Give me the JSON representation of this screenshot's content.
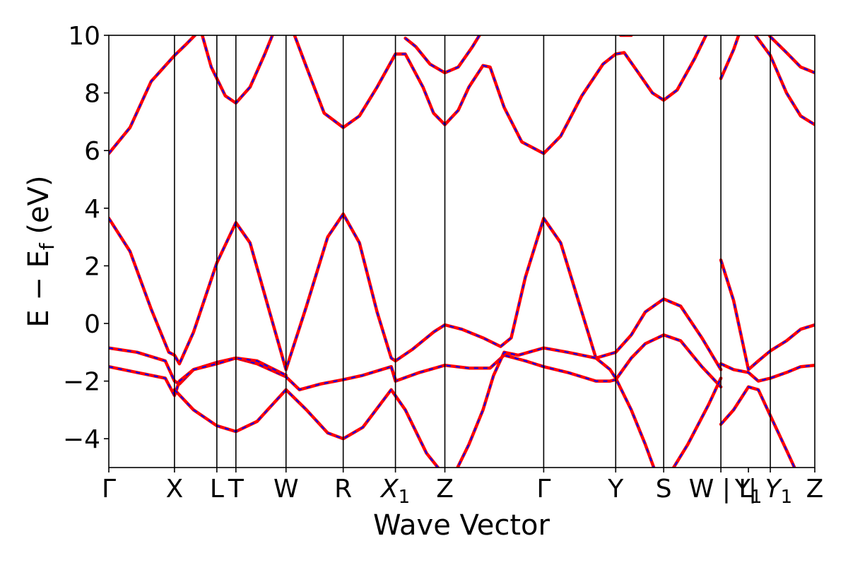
{
  "chart_data": {
    "type": "line",
    "xlabel": "Wave Vector",
    "ylabel": "E − E_f (eV)",
    "ylabel_main": "E − E",
    "ylabel_sub": "f",
    "ylabel_tail": " (eV)",
    "ylim": [
      -5,
      10
    ],
    "yticks": [
      -4,
      -2,
      0,
      2,
      4,
      6,
      8,
      10
    ],
    "ytick_labels": [
      "−4",
      "−2",
      "0",
      "2",
      "4",
      "6",
      "8",
      "10"
    ],
    "grid": false,
    "kpoints": [
      {
        "label": "Γ",
        "x": 0.0
      },
      {
        "label": "X",
        "x": 0.93
      },
      {
        "label": "L",
        "x": 1.53
      },
      {
        "label": "T",
        "x": 1.8
      },
      {
        "label": "W",
        "x": 2.51
      },
      {
        "label": "R",
        "x": 3.32
      },
      {
        "label": "X",
        "sub": "1",
        "italic": true,
        "x": 4.06
      },
      {
        "label": "Z",
        "x": 4.76
      },
      {
        "label": "Γ",
        "x": 6.16
      },
      {
        "label": "Y",
        "x": 7.18
      },
      {
        "label": "S",
        "x": 7.86
      },
      {
        "label": "W | L",
        "x": 8.67
      },
      {
        "label": "Y",
        "sub": "1",
        "x": 9.06
      },
      {
        "label": "| Y",
        "sub": "1",
        "italic": true,
        "x": 9.37
      },
      {
        "label": "Z",
        "x": 10.0
      }
    ],
    "vlines": [
      0.93,
      1.53,
      1.8,
      2.51,
      3.32,
      4.06,
      4.76,
      6.16,
      7.18,
      7.86,
      8.67,
      9.37
    ],
    "xlim": [
      0,
      10.0
    ],
    "series": [
      {
        "style": "solid",
        "color": "#ff0000"
      },
      {
        "style": "dashed",
        "color": "#0000ff"
      }
    ],
    "bands": [
      [
        [
          0,
          5.9
        ],
        [
          0.3,
          6.8
        ],
        [
          0.6,
          8.4
        ],
        [
          0.93,
          9.3
        ],
        [
          1.1,
          9.7
        ],
        [
          1.3,
          10.2
        ]
      ],
      [
        [
          1.3,
          10.2
        ],
        [
          1.45,
          8.9
        ],
        [
          1.65,
          7.9
        ],
        [
          1.8,
          7.65
        ],
        [
          2.0,
          8.2
        ],
        [
          2.2,
          9.3
        ],
        [
          2.35,
          10.2
        ]
      ],
      [
        [
          2.6,
          10.2
        ],
        [
          2.8,
          8.9
        ],
        [
          3.05,
          7.3
        ],
        [
          3.32,
          6.8
        ],
        [
          3.55,
          7.2
        ],
        [
          3.8,
          8.2
        ],
        [
          4.06,
          9.35
        ],
        [
          4.2,
          9.35
        ],
        [
          4.45,
          8.2
        ],
        [
          4.6,
          7.3
        ],
        [
          4.76,
          6.9
        ],
        [
          4.95,
          7.4
        ],
        [
          5.1,
          8.2
        ],
        [
          5.3,
          8.95
        ],
        [
          5.4,
          8.9
        ],
        [
          5.6,
          7.5
        ],
        [
          5.85,
          6.3
        ],
        [
          6.16,
          5.9
        ],
        [
          6.4,
          6.5
        ],
        [
          6.7,
          7.9
        ],
        [
          7.0,
          9.0
        ],
        [
          7.18,
          9.35
        ],
        [
          7.3,
          9.4
        ],
        [
          7.5,
          8.7
        ],
        [
          7.7,
          8.0
        ],
        [
          7.86,
          7.75
        ],
        [
          8.05,
          8.1
        ],
        [
          8.3,
          9.2
        ],
        [
          8.5,
          10.2
        ]
      ],
      [
        [
          4.2,
          9.9
        ],
        [
          4.35,
          9.6
        ],
        [
          4.55,
          9.0
        ],
        [
          4.76,
          8.7
        ],
        [
          4.95,
          8.9
        ],
        [
          5.15,
          9.6
        ],
        [
          5.3,
          10.2
        ]
      ],
      [
        [
          8.67,
          8.5
        ],
        [
          8.85,
          9.5
        ],
        [
          8.95,
          10.2
        ]
      ],
      [
        [
          9.3,
          10.2
        ],
        [
          9.37,
          9.95
        ],
        [
          9.6,
          9.4
        ],
        [
          9.8,
          8.9
        ],
        [
          10.0,
          8.7
        ]
      ],
      [
        [
          9.1,
          10.2
        ],
        [
          9.37,
          9.3
        ],
        [
          9.6,
          8.0
        ],
        [
          9.8,
          7.2
        ],
        [
          10.0,
          6.9
        ]
      ],
      [
        [
          7.25,
          10.0
        ],
        [
          7.4,
          10.0
        ]
      ],
      [
        [
          0,
          3.65
        ],
        [
          0.3,
          2.5
        ],
        [
          0.6,
          0.5
        ],
        [
          0.85,
          -1.0
        ],
        [
          0.93,
          -1.1
        ],
        [
          1.0,
          -1.4
        ],
        [
          1.2,
          -0.3
        ],
        [
          1.53,
          2.1
        ],
        [
          1.8,
          3.5
        ],
        [
          2.0,
          2.8
        ],
        [
          2.3,
          0.2
        ],
        [
          2.51,
          -1.6
        ],
        [
          2.8,
          0.6
        ],
        [
          3.1,
          3.0
        ],
        [
          3.32,
          3.8
        ],
        [
          3.55,
          2.8
        ],
        [
          3.8,
          0.4
        ],
        [
          4.0,
          -1.2
        ],
        [
          4.06,
          -1.3
        ],
        [
          4.3,
          -0.9
        ],
        [
          4.6,
          -0.3
        ],
        [
          4.76,
          -0.05
        ],
        [
          5.0,
          -0.2
        ],
        [
          5.3,
          -0.5
        ],
        [
          5.55,
          -0.8
        ],
        [
          5.7,
          -0.5
        ],
        [
          5.9,
          1.6
        ],
        [
          6.16,
          3.65
        ],
        [
          6.4,
          2.8
        ],
        [
          6.7,
          0.4
        ],
        [
          6.9,
          -1.2
        ],
        [
          7.18,
          -1.0
        ],
        [
          7.4,
          -0.4
        ],
        [
          7.6,
          0.4
        ],
        [
          7.86,
          0.85
        ],
        [
          8.1,
          0.6
        ],
        [
          8.4,
          -0.5
        ],
        [
          8.67,
          -1.6
        ]
      ],
      [
        [
          0,
          -0.85
        ],
        [
          0.4,
          -1.0
        ],
        [
          0.8,
          -1.3
        ],
        [
          0.93,
          -2.0
        ],
        [
          1.0,
          -2.1
        ],
        [
          1.2,
          -1.6
        ],
        [
          1.53,
          -1.35
        ],
        [
          1.8,
          -1.2
        ],
        [
          2.1,
          -1.4
        ],
        [
          2.51,
          -1.85
        ],
        [
          2.7,
          -2.3
        ],
        [
          3.0,
          -2.1
        ],
        [
          3.32,
          -1.95
        ],
        [
          3.6,
          -1.8
        ],
        [
          4.0,
          -1.5
        ],
        [
          4.06,
          -2.0
        ],
        [
          4.4,
          -1.7
        ],
        [
          4.76,
          -1.45
        ],
        [
          5.1,
          -1.55
        ],
        [
          5.4,
          -1.55
        ],
        [
          5.6,
          -1.1
        ],
        [
          5.9,
          -1.3
        ],
        [
          6.16,
          -1.5
        ],
        [
          6.5,
          -1.7
        ],
        [
          6.9,
          -2.0
        ],
        [
          7.1,
          -2.0
        ],
        [
          7.18,
          -1.95
        ],
        [
          7.4,
          -1.2
        ],
        [
          7.6,
          -0.7
        ],
        [
          7.86,
          -0.4
        ],
        [
          8.1,
          -0.6
        ],
        [
          8.4,
          -1.5
        ],
        [
          8.67,
          -2.2
        ]
      ],
      [
        [
          0,
          -1.5
        ],
        [
          0.4,
          -1.7
        ],
        [
          0.8,
          -1.9
        ],
        [
          0.93,
          -2.5
        ],
        [
          1.0,
          -2.0
        ],
        [
          1.2,
          -1.6
        ],
        [
          1.53,
          -1.4
        ],
        [
          1.8,
          -1.2
        ],
        [
          2.1,
          -1.3
        ],
        [
          2.51,
          -1.8
        ]
      ],
      [
        [
          0.93,
          -2.3
        ],
        [
          1.2,
          -3.0
        ],
        [
          1.53,
          -3.55
        ],
        [
          1.8,
          -3.75
        ],
        [
          2.1,
          -3.4
        ],
        [
          2.51,
          -2.3
        ],
        [
          2.8,
          -3.0
        ],
        [
          3.1,
          -3.8
        ],
        [
          3.32,
          -4.0
        ],
        [
          3.6,
          -3.6
        ],
        [
          4.0,
          -2.3
        ],
        [
          4.2,
          -3.0
        ],
        [
          4.5,
          -4.5
        ],
        [
          4.76,
          -5.3
        ]
      ],
      [
        [
          4.0,
          -1.5
        ],
        [
          4.06,
          -1.95
        ]
      ],
      [
        [
          4.9,
          -5.2
        ],
        [
          5.1,
          -4.2
        ],
        [
          5.3,
          -3.0
        ],
        [
          5.45,
          -1.8
        ],
        [
          5.6,
          -1.0
        ],
        [
          5.8,
          -1.1
        ],
        [
          6.16,
          -0.85
        ],
        [
          6.5,
          -1.0
        ],
        [
          6.9,
          -1.2
        ],
        [
          7.1,
          -1.6
        ],
        [
          7.18,
          -1.9
        ],
        [
          7.4,
          -3.0
        ],
        [
          7.6,
          -4.2
        ],
        [
          7.75,
          -5.2
        ]
      ],
      [
        [
          7.95,
          -5.2
        ],
        [
          8.2,
          -4.2
        ],
        [
          8.5,
          -2.8
        ],
        [
          8.67,
          -1.9
        ]
      ],
      [
        [
          8.67,
          2.2
        ],
        [
          8.85,
          0.8
        ],
        [
          9.06,
          -1.6
        ],
        [
          9.2,
          -1.3
        ],
        [
          9.37,
          -0.95
        ],
        [
          9.6,
          -0.6
        ],
        [
          9.8,
          -0.2
        ],
        [
          10.0,
          -0.05
        ]
      ],
      [
        [
          8.67,
          -1.4
        ],
        [
          8.85,
          -1.6
        ],
        [
          9.06,
          -1.7
        ],
        [
          9.2,
          -2.0
        ],
        [
          9.37,
          -1.9
        ],
        [
          9.6,
          -1.7
        ],
        [
          9.8,
          -1.5
        ],
        [
          10.0,
          -1.45
        ]
      ],
      [
        [
          8.67,
          -3.5
        ],
        [
          8.85,
          -3.0
        ],
        [
          9.06,
          -2.2
        ],
        [
          9.2,
          -2.3
        ],
        [
          9.37,
          -3.2
        ],
        [
          9.6,
          -4.4
        ],
        [
          9.75,
          -5.2
        ]
      ]
    ]
  }
}
